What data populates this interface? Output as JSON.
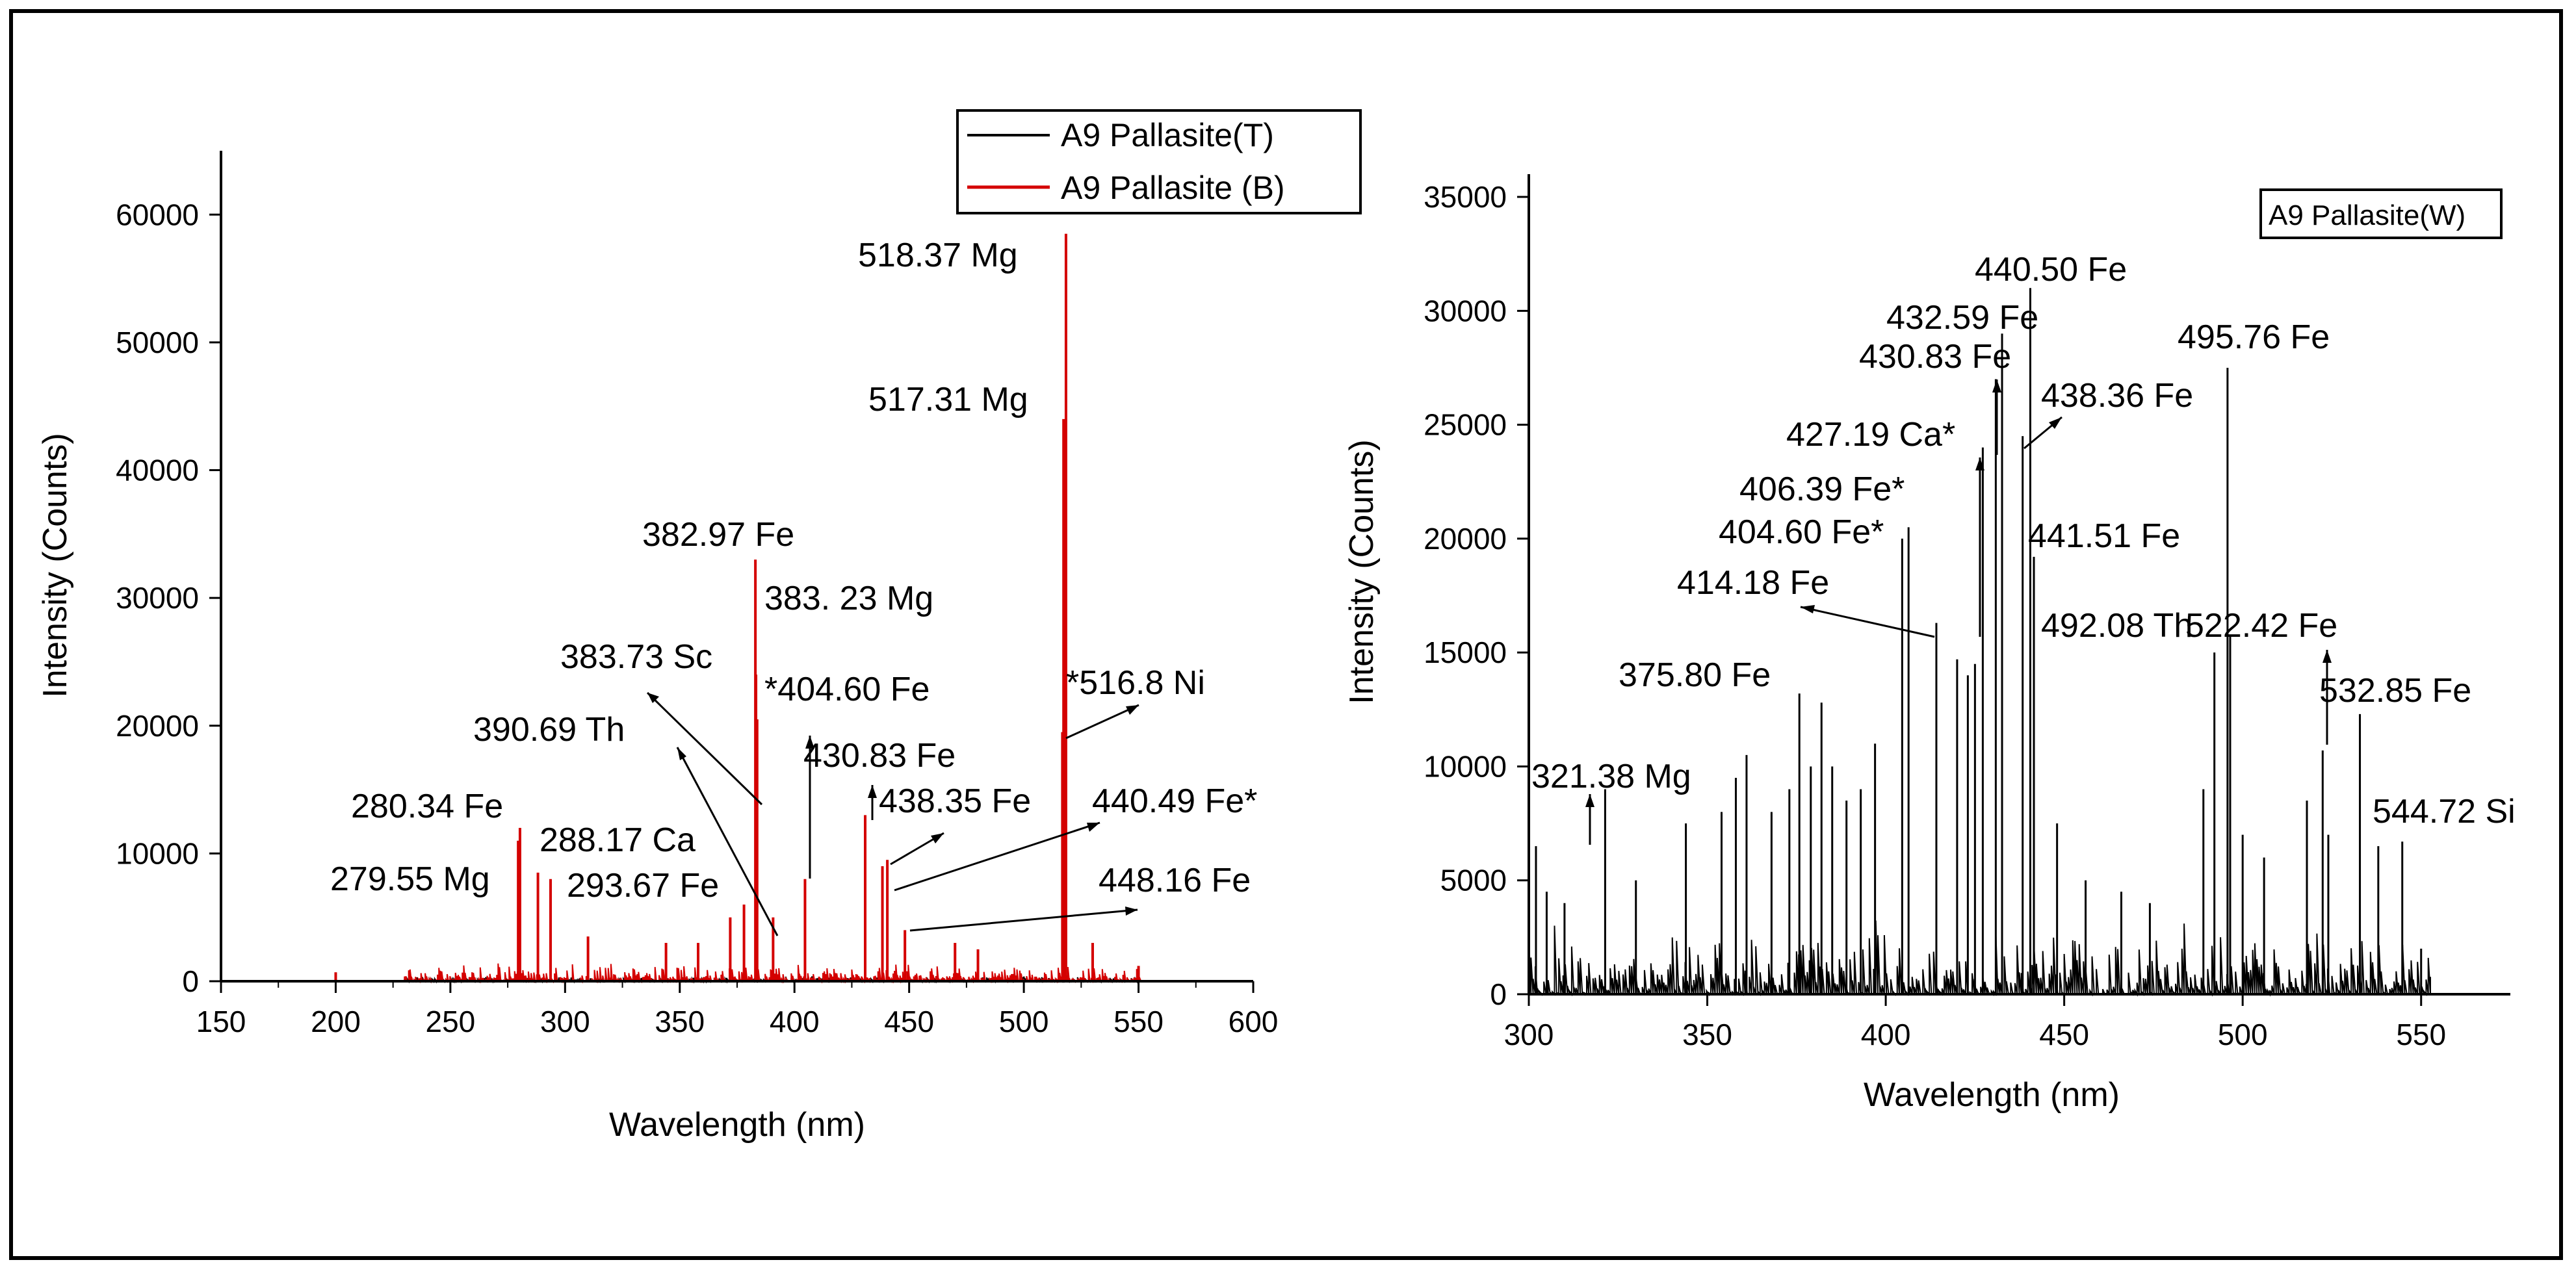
{
  "chart_data": [
    {
      "type": "line",
      "xlabel": "Wavelength (nm)",
      "ylabel": "Intensity (Counts)",
      "xlim": [
        150,
        600
      ],
      "ylim": [
        0,
        65000
      ],
      "xticks": [
        150,
        200,
        250,
        300,
        350,
        400,
        450,
        500,
        550,
        600
      ],
      "yticks": [
        0,
        10000,
        20000,
        30000,
        40000,
        50000,
        60000
      ],
      "legend": {
        "position": "top-right",
        "entries": [
          "A9 Pallasite(T)",
          "A9  Pallasite (B)"
        ]
      },
      "series": [
        {
          "name": "A9 Pallasite(T)",
          "color": "#000000",
          "peaks": [
            [
              200,
              600
            ],
            [
              280.34,
              9000
            ],
            [
              293.67,
              6500
            ],
            [
              382.97,
              5000
            ],
            [
              404.6,
              3500
            ],
            [
              430.83,
              9000
            ],
            [
              438.35,
              8500
            ],
            [
              440.49,
              6000
            ],
            [
              518.37,
              1000
            ],
            [
              517.31,
              900
            ]
          ]
        },
        {
          "name": "A9  Pallasite (B)",
          "color": "#d40000",
          "peaks": [
            [
              200,
              700
            ],
            [
              279.55,
              11000
            ],
            [
              280.34,
              12000
            ],
            [
              288.17,
              8500
            ],
            [
              293.67,
              8000
            ],
            [
              310,
              3500
            ],
            [
              344,
              3000
            ],
            [
              358,
              3000
            ],
            [
              372,
              5000
            ],
            [
              378,
              6000
            ],
            [
              382.97,
              33000
            ],
            [
              383.23,
              24000
            ],
            [
              383.73,
              20500
            ],
            [
              390.69,
              5000
            ],
            [
              404.6,
              8000
            ],
            [
              430.83,
              13000
            ],
            [
              438.35,
              9000
            ],
            [
              440.49,
              9500
            ],
            [
              448.16,
              4000
            ],
            [
              470,
              3000
            ],
            [
              480,
              2500
            ],
            [
              516.8,
              19500
            ],
            [
              517.31,
              44000
            ],
            [
              518.37,
              58500
            ],
            [
              530,
              3000
            ],
            [
              550,
              1200
            ]
          ]
        }
      ],
      "annotations": [
        "518.37 Mg",
        "517.31 Mg",
        "382.97 Fe",
        "383. 23 Mg",
        "383.73 Sc",
        "*404.60 Fe",
        "*516.8 Ni",
        "390.69 Th",
        "430.83 Fe",
        "280.34 Fe",
        "288.17 Ca",
        "438.35 Fe",
        "440.49 Fe*",
        "279.55 Mg",
        "293.67 Fe",
        "448.16 Fe"
      ]
    },
    {
      "type": "line",
      "xlabel": "Wavelength (nm)",
      "ylabel": "Intensity (Counts)",
      "xlim": [
        300,
        575
      ],
      "ylim": [
        0,
        36000
      ],
      "xticks": [
        300,
        350,
        400,
        450,
        500,
        550
      ],
      "yticks": [
        0,
        5000,
        10000,
        15000,
        20000,
        25000,
        30000,
        35000
      ],
      "legend": {
        "position": "top-right",
        "entries": [
          "A9 Pallasite(W)"
        ]
      },
      "series": [
        {
          "name": "A9 Pallasite(W)",
          "color": "#000000",
          "peaks": [
            [
              302,
              6500
            ],
            [
              305,
              4500
            ],
            [
              310,
              4000
            ],
            [
              321.38,
              9000
            ],
            [
              330,
              5000
            ],
            [
              344,
              7500
            ],
            [
              354,
              8000
            ],
            [
              358,
              9500
            ],
            [
              361,
              10500
            ],
            [
              368,
              8000
            ],
            [
              373,
              9000
            ],
            [
              375.8,
              13200
            ],
            [
              379,
              10000
            ],
            [
              382,
              12800
            ],
            [
              385,
              10000
            ],
            [
              389,
              8500
            ],
            [
              393,
              9000
            ],
            [
              397,
              11000
            ],
            [
              404.6,
              20000
            ],
            [
              406.39,
              20500
            ],
            [
              414.18,
              16300
            ],
            [
              420,
              14700
            ],
            [
              423,
              14000
            ],
            [
              425,
              14500
            ],
            [
              427.19,
              24000
            ],
            [
              430.83,
              27000
            ],
            [
              432.59,
              29000
            ],
            [
              438.36,
              24500
            ],
            [
              440.5,
              31000
            ],
            [
              441.51,
              19200
            ],
            [
              448,
              7500
            ],
            [
              456,
              5000
            ],
            [
              466,
              4500
            ],
            [
              474,
              4000
            ],
            [
              489,
              9000
            ],
            [
              492.08,
              15000
            ],
            [
              495.76,
              27500
            ],
            [
              496.5,
              15700
            ],
            [
              500,
              7000
            ],
            [
              506,
              6000
            ],
            [
              518,
              8500
            ],
            [
              522.42,
              10700
            ],
            [
              524,
              7000
            ],
            [
              532.85,
              12300
            ],
            [
              538,
              6500
            ],
            [
              544.72,
              6700
            ],
            [
              550,
              2000
            ]
          ]
        }
      ],
      "annotations": [
        "440.50 Fe",
        "432.59 Fe",
        "430.83 Fe",
        "438.36 Fe",
        "495.76 Fe",
        "427.19 Ca*",
        "406.39 Fe*",
        "404.60 Fe*",
        "441.51 Fe",
        "414.18 Fe",
        "492.08 Th",
        "522.42 Fe",
        "375.80 Fe",
        "532.85 Fe",
        "321.38 Mg",
        "544.72 Si"
      ]
    }
  ]
}
